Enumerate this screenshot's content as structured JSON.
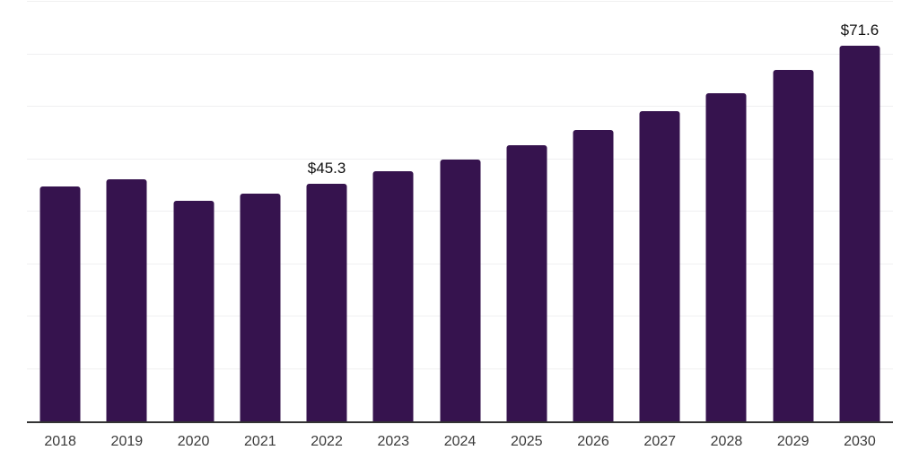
{
  "chart_data": {
    "type": "bar",
    "title": "",
    "xlabel": "",
    "ylabel": "",
    "categories": [
      "2018",
      "2019",
      "2020",
      "2021",
      "2022",
      "2023",
      "2024",
      "2025",
      "2026",
      "2027",
      "2028",
      "2029",
      "2030"
    ],
    "values": [
      44.8,
      46.2,
      42.0,
      43.4,
      45.3,
      47.7,
      50.0,
      52.7,
      55.6,
      59.2,
      62.6,
      67.0,
      71.6
    ],
    "data_labels": [
      "",
      "",
      "",
      "",
      "$45.3",
      "",
      "",
      "",
      "",
      "",
      "",
      "",
      "$71.6"
    ],
    "ylim": [
      0,
      80
    ],
    "gridline_step": 10,
    "grid": true,
    "legend": "none",
    "colors": {
      "bar": "#36134E",
      "gridline": "#f0f0f1",
      "axis_line": "#333333",
      "tick_label": "#3a3a3a",
      "data_label": "#111111",
      "background": "#ffffff"
    }
  }
}
